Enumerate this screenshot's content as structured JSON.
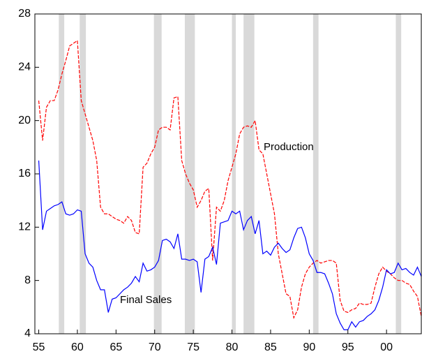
{
  "chart_data": {
    "type": "line",
    "x": [
      1955,
      1955.5,
      1956,
      1956.5,
      1957,
      1957.5,
      1958,
      1958.5,
      1959,
      1959.5,
      1960,
      1960.5,
      1961,
      1961.5,
      1962,
      1962.5,
      1963,
      1963.5,
      1964,
      1964.5,
      1965,
      1965.5,
      1966,
      1966.5,
      1967,
      1967.5,
      1968,
      1968.5,
      1969,
      1969.5,
      1970,
      1970.5,
      1971,
      1971.5,
      1972,
      1972.5,
      1973,
      1973.5,
      1974,
      1974.5,
      1975,
      1975.5,
      1976,
      1976.5,
      1977,
      1977.5,
      1978,
      1978.5,
      1979,
      1979.5,
      1980,
      1980.5,
      1981,
      1981.5,
      1982,
      1982.5,
      1983,
      1983.5,
      1984,
      1984.5,
      1985,
      1985.5,
      1986,
      1986.5,
      1987,
      1987.5,
      1988,
      1988.5,
      1989,
      1989.5,
      1990,
      1990.5,
      1991,
      1991.5,
      1992,
      1992.5,
      1993,
      1993.5,
      1994,
      1994.5,
      1995,
      1995.5,
      1996,
      1996.5,
      1997,
      1997.5,
      1998,
      1998.5,
      1999,
      1999.5,
      2000,
      2000.5,
      2001,
      2001.5,
      2002,
      2002.5,
      2003,
      2003.5,
      2004,
      2004.5
    ],
    "series": [
      {
        "name": "Production",
        "color": "#ff0000",
        "dash": true,
        "values": [
          21.5,
          18.5,
          21.0,
          21.5,
          21.5,
          22.3,
          23.5,
          24.5,
          25.6,
          25.8,
          26.0,
          21.5,
          20.5,
          19.5,
          18.5,
          17.0,
          13.5,
          13.0,
          13.0,
          12.8,
          12.6,
          12.5,
          12.3,
          12.8,
          12.5,
          11.6,
          11.5,
          16.5,
          16.8,
          17.5,
          18.0,
          19.3,
          19.5,
          19.5,
          19.3,
          21.7,
          21.8,
          17.0,
          16.0,
          15.3,
          14.8,
          13.5,
          14.0,
          14.7,
          14.9,
          9.5,
          13.5,
          13.2,
          14.0,
          15.5,
          16.5,
          17.5,
          19.0,
          19.5,
          19.6,
          19.5,
          20.0,
          17.8,
          17.5,
          16.0,
          14.5,
          13.0,
          10.0,
          8.5,
          7.0,
          6.8,
          5.2,
          5.8,
          7.5,
          8.5,
          9.0,
          9.3,
          9.5,
          9.3,
          9.4,
          9.5,
          9.5,
          9.3,
          6.5,
          5.7,
          5.6,
          5.8,
          5.9,
          6.3,
          6.2,
          6.2,
          6.3,
          7.5,
          8.5,
          9.0,
          8.7,
          8.5,
          8.2,
          8.0,
          8.0,
          7.8,
          7.7,
          7.2,
          6.8,
          5.3
        ]
      },
      {
        "name": "Final Sales",
        "color": "#0000ff",
        "dash": false,
        "values": [
          17.0,
          11.8,
          13.2,
          13.4,
          13.6,
          13.7,
          13.9,
          13.0,
          12.9,
          13.0,
          13.3,
          13.2,
          10.0,
          9.3,
          9.0,
          8.0,
          7.3,
          7.3,
          5.6,
          6.6,
          6.7,
          7.0,
          7.3,
          7.5,
          7.8,
          8.3,
          7.9,
          9.3,
          8.7,
          8.8,
          9.0,
          9.5,
          11.0,
          11.1,
          10.9,
          10.4,
          11.5,
          9.6,
          9.6,
          9.5,
          9.6,
          9.4,
          7.1,
          9.6,
          9.8,
          10.5,
          9.2,
          12.3,
          12.4,
          12.5,
          13.2,
          13.0,
          13.2,
          11.8,
          12.5,
          12.8,
          11.5,
          12.5,
          10.0,
          10.2,
          9.9,
          10.5,
          10.8,
          10.4,
          10.1,
          10.3,
          11.2,
          11.9,
          12.0,
          11.2,
          10.0,
          9.5,
          8.6,
          8.6,
          8.5,
          7.8,
          7.0,
          5.5,
          4.8,
          4.3,
          4.3,
          4.9,
          4.5,
          4.9,
          5.0,
          5.3,
          5.5,
          5.8,
          6.5,
          7.5,
          8.8,
          8.5,
          8.6,
          9.3,
          8.8,
          8.9,
          8.6,
          8.4,
          9.0,
          8.3
        ]
      }
    ],
    "shading": [
      [
        1957.6,
        1958.3
      ],
      [
        1960.3,
        1961.1
      ],
      [
        1969.9,
        1970.9
      ],
      [
        1973.9,
        1975.2
      ],
      [
        1980.0,
        1980.5
      ],
      [
        1981.5,
        1982.9
      ],
      [
        1990.5,
        1991.2
      ],
      [
        2001.2,
        2001.9
      ]
    ],
    "shade_color": "#d9d9d9",
    "xlim": [
      1954.5,
      2004.5
    ],
    "xticks": [
      {
        "value": 1955,
        "label": "55"
      },
      {
        "value": 1960,
        "label": "60"
      },
      {
        "value": 1965,
        "label": "65"
      },
      {
        "value": 1970,
        "label": "70"
      },
      {
        "value": 1975,
        "label": "75"
      },
      {
        "value": 1980,
        "label": "80"
      },
      {
        "value": 1985,
        "label": "85"
      },
      {
        "value": 1990,
        "label": "90"
      },
      {
        "value": 1995,
        "label": "95"
      },
      {
        "value": 2000,
        "label": "00"
      }
    ],
    "ylim": [
      4,
      28
    ],
    "yticks": [
      4,
      8,
      12,
      16,
      20,
      24,
      28
    ],
    "annotations": [
      "Production",
      "Final Sales"
    ]
  }
}
